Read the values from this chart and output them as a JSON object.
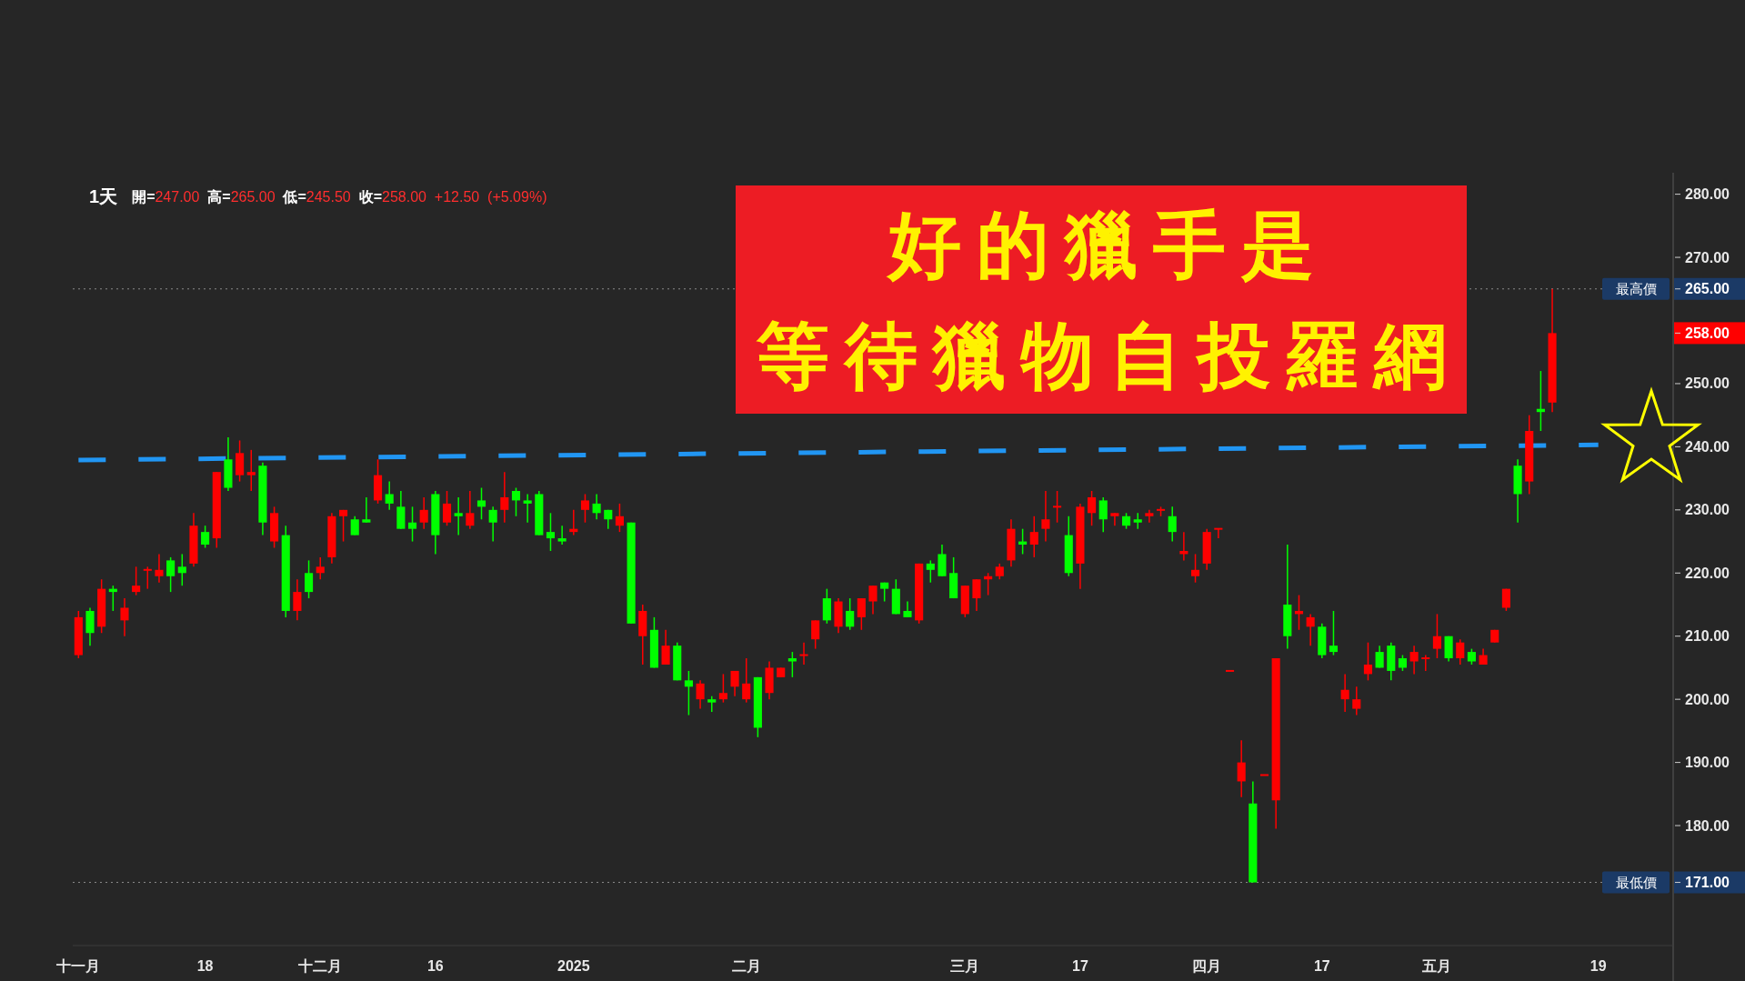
{
  "chart_data": {
    "type": "candlestick",
    "title": "1天",
    "subtitle": "開=247.00 高=265.00 低=245.50 收=258.00 +12.50 (+5.09%)",
    "categories": [
      "十一月",
      null,
      null,
      null,
      null,
      null,
      null,
      null,
      null,
      null,
      null,
      "18",
      null,
      null,
      null,
      null,
      null,
      null,
      null,
      null,
      null,
      "十二月",
      null,
      null,
      null,
      null,
      null,
      null,
      null,
      null,
      null,
      "16",
      null,
      null,
      null,
      null,
      null,
      null,
      null,
      null,
      null,
      null,
      null,
      "2025",
      null,
      null,
      null,
      null,
      null,
      null,
      null,
      null,
      null,
      null,
      null,
      null,
      null,
      null,
      "二月",
      null,
      null,
      null,
      null,
      null,
      null,
      null,
      null,
      null,
      null,
      null,
      null,
      null,
      null,
      null,
      null,
      null,
      null,
      "三月",
      null,
      null,
      null,
      null,
      null,
      null,
      null,
      null,
      null,
      "17",
      null,
      null,
      null,
      null,
      null,
      null,
      null,
      null,
      null,
      null,
      "四月",
      null,
      null,
      null,
      null,
      null,
      null,
      null,
      null,
      null,
      "17",
      null,
      null,
      null,
      null,
      null,
      null,
      null,
      null,
      null,
      "五月",
      null,
      null,
      null,
      null,
      null,
      null,
      null,
      null,
      null,
      null,
      null,
      null,
      null,
      "19",
      null,
      null,
      null,
      null,
      null,
      null
    ],
    "ohlc": [
      [
        207,
        214,
        206.5,
        213
      ],
      [
        214,
        214.5,
        208.5,
        210.5
      ],
      [
        211.5,
        219,
        210.5,
        217.5
      ],
      [
        217.5,
        218,
        214,
        217
      ],
      [
        212.5,
        216,
        210,
        214.5
      ],
      [
        217,
        221,
        216.5,
        218
      ],
      [
        220.5,
        221,
        217.5,
        220.5
      ],
      [
        219.5,
        223,
        218.5,
        220.5
      ],
      [
        222,
        222.5,
        217,
        219.5
      ],
      [
        221,
        223,
        218,
        220
      ],
      [
        221.5,
        229.5,
        221,
        227.5
      ],
      [
        226.5,
        227.5,
        224,
        224.5
      ],
      [
        225.5,
        236,
        224,
        236
      ],
      [
        238,
        241.5,
        233,
        233.5
      ],
      [
        235.5,
        241,
        234.5,
        239
      ],
      [
        235.5,
        239.5,
        233,
        236
      ],
      [
        237,
        237.5,
        226,
        228
      ],
      [
        225,
        230.5,
        224,
        229.5
      ],
      [
        226,
        227.5,
        213,
        214
      ],
      [
        214,
        219,
        212.5,
        217
      ],
      [
        220,
        222,
        216,
        217
      ],
      [
        220,
        222.5,
        219,
        221
      ],
      [
        222.5,
        229.5,
        221.5,
        229
      ],
      [
        229,
        230,
        225,
        230
      ],
      [
        228.5,
        229,
        226,
        226
      ],
      [
        228.5,
        232,
        228,
        228
      ],
      [
        231.5,
        238,
        231,
        235.5
      ],
      [
        232.5,
        234.5,
        230,
        231
      ],
      [
        230.5,
        233,
        227,
        227
      ],
      [
        228,
        230.5,
        225,
        227
      ],
      [
        228,
        232,
        227,
        230
      ],
      [
        232.5,
        233,
        223,
        226
      ],
      [
        228,
        233,
        227.5,
        231
      ],
      [
        229.5,
        232,
        226,
        229
      ],
      [
        227.5,
        233,
        227,
        229.5
      ],
      [
        231.5,
        233.5,
        228.5,
        230.5
      ],
      [
        230,
        230.5,
        225,
        228
      ],
      [
        230,
        236,
        228,
        232
      ],
      [
        233,
        233.5,
        229,
        231.5
      ],
      [
        231.5,
        232.5,
        228,
        231
      ],
      [
        232.5,
        233,
        226,
        226
      ],
      [
        226.5,
        229.5,
        223.5,
        225.5
      ],
      [
        225.5,
        227.5,
        224.5,
        225
      ],
      [
        226.5,
        230,
        226,
        227
      ],
      [
        230,
        232.5,
        228,
        231.5
      ],
      [
        231,
        232.5,
        228.5,
        229.5
      ],
      [
        230,
        230,
        227,
        228.5
      ],
      [
        227.5,
        231,
        226.5,
        229
      ],
      [
        228,
        228,
        212,
        212
      ],
      [
        210,
        215,
        205.5,
        214
      ],
      [
        211,
        213,
        205,
        205
      ],
      [
        205.5,
        211,
        205.5,
        208.5
      ],
      [
        208.5,
        209,
        203,
        203
      ],
      [
        203,
        204.5,
        197.5,
        202
      ],
      [
        200,
        203,
        198.5,
        202.5
      ],
      [
        200,
        200.5,
        198,
        199.5
      ],
      [
        200,
        204,
        199.5,
        201
      ],
      [
        202,
        204.5,
        200.5,
        204.5
      ],
      [
        200,
        206.5,
        199.5,
        202.5
      ],
      [
        203.5,
        203.5,
        194,
        195.5
      ],
      [
        201,
        206,
        200,
        205
      ],
      [
        203.5,
        205,
        203.5,
        205
      ],
      [
        206.5,
        207.5,
        203.5,
        206
      ],
      [
        207,
        209,
        205.5,
        207
      ],
      [
        209.5,
        212.5,
        208,
        212.5
      ],
      [
        216,
        217.5,
        212,
        212.5
      ],
      [
        211.5,
        216,
        210.5,
        215.5
      ],
      [
        214,
        216,
        211,
        211.5
      ],
      [
        213,
        216,
        211,
        216
      ],
      [
        215.5,
        218,
        213.5,
        218
      ],
      [
        218.5,
        218.5,
        215.5,
        217.5
      ],
      [
        217.5,
        219,
        213.5,
        213.5
      ],
      [
        214,
        215.5,
        213,
        213
      ],
      [
        212.5,
        221.5,
        212,
        221.5
      ],
      [
        221.5,
        222,
        218.5,
        220.5
      ],
      [
        223,
        224.5,
        219.5,
        219.5
      ],
      [
        220,
        222.5,
        216,
        216
      ],
      [
        213.5,
        218,
        213,
        218
      ],
      [
        216,
        219,
        214,
        219
      ],
      [
        219,
        220,
        216.5,
        219.5
      ],
      [
        219.5,
        221.5,
        219,
        221
      ],
      [
        222,
        228.5,
        221,
        227
      ],
      [
        225,
        227,
        223,
        224.5
      ],
      [
        224.5,
        229,
        222.5,
        226.5
      ],
      [
        227,
        233,
        225,
        228.5
      ],
      [
        230.5,
        233,
        228,
        230.5
      ],
      [
        226,
        229,
        219.5,
        220
      ],
      [
        221.5,
        231,
        217.5,
        230.5
      ],
      [
        229.5,
        233,
        227.5,
        232
      ],
      [
        231.5,
        232,
        226.5,
        228.5
      ],
      [
        229,
        229.5,
        227.5,
        229.5
      ],
      [
        229,
        229.5,
        227,
        227.5
      ],
      [
        228.5,
        229.5,
        227,
        228
      ],
      [
        229,
        230,
        228,
        229.5
      ],
      [
        230,
        230.5,
        229,
        230
      ],
      [
        229,
        230.5,
        225,
        226.5
      ],
      [
        223,
        226.5,
        222,
        223.5
      ],
      [
        219.5,
        223,
        218.5,
        220.5
      ],
      [
        221.5,
        227,
        220.5,
        226.5
      ],
      [
        227,
        227,
        225.5,
        227
      ],
      [
        204.5,
        204.5,
        204.5,
        204.5
      ],
      [
        187,
        193.5,
        184.5,
        190
      ],
      [
        183.5,
        187,
        171,
        171
      ],
      [
        188,
        188,
        188,
        188
      ],
      [
        184,
        206.5,
        179.5,
        206.5
      ],
      [
        215,
        224.5,
        208,
        210
      ],
      [
        213.5,
        216.5,
        211,
        214
      ],
      [
        211.5,
        213.5,
        208.5,
        213
      ],
      [
        211.5,
        212,
        206.5,
        207
      ],
      [
        208.5,
        214,
        207,
        207.5
      ],
      [
        200,
        204,
        198,
        201.5
      ],
      [
        198.5,
        202,
        197.5,
        200
      ],
      [
        204,
        209,
        203,
        205.5
      ],
      [
        207.5,
        208.5,
        205,
        205
      ],
      [
        208.5,
        209,
        203,
        204.5
      ],
      [
        206.5,
        207,
        204.5,
        205
      ],
      [
        206,
        208.5,
        204,
        207.5
      ],
      [
        206.5,
        207,
        204.5,
        206.5
      ],
      [
        208,
        213.5,
        206.5,
        210
      ],
      [
        210,
        210,
        206,
        206.5
      ],
      [
        206.5,
        209.5,
        205.5,
        209
      ],
      [
        207.5,
        208,
        205.5,
        206
      ],
      [
        205.5,
        208,
        205.5,
        207
      ],
      [
        209,
        211,
        209,
        211
      ],
      [
        214.5,
        217.5,
        214,
        217.5
      ],
      [
        237,
        238,
        228,
        232.5
      ],
      [
        234.5,
        245,
        232.5,
        242.5
      ],
      [
        246,
        252,
        242.5,
        245.5
      ],
      [
        247,
        265,
        245.5,
        258
      ],
      null,
      null,
      null,
      null,
      null,
      null,
      null,
      null,
      null,
      null
    ],
    "colors": [
      "#ff0000",
      "#00ff00",
      "#ff0000",
      "#00ff00",
      "#ff0000",
      "#ff0000",
      "#ff0000",
      "#ff0000",
      "#00ff00",
      "#00ff00",
      "#ff0000",
      "#00ff00",
      "#ff0000",
      "#00ff00",
      "#ff0000",
      "#ff0000",
      "#00ff00",
      "#ff0000",
      "#00ff00",
      "#ff0000",
      "#00ff00",
      "#ff0000",
      "#ff0000",
      "#ff0000",
      "#00ff00",
      "#00ff00",
      "#ff0000",
      "#00ff00",
      "#00ff00",
      "#00ff00",
      "#ff0000",
      "#00ff00",
      "#ff0000",
      "#00ff00",
      "#ff0000",
      "#00ff00",
      "#00ff00",
      "#ff0000",
      "#00ff00",
      "#00ff00",
      "#00ff00",
      "#00ff00",
      "#00ff00",
      "#ff0000",
      "#ff0000",
      "#00ff00",
      "#00ff00",
      "#ff0000",
      "#00ff00",
      "#ff0000",
      "#00ff00",
      "#ff0000",
      "#00ff00",
      "#00ff00",
      "#ff0000",
      "#00ff00",
      "#ff0000",
      "#ff0000",
      "#ff0000",
      "#00ff00",
      "#ff0000",
      "#ff0000",
      "#00ff00",
      "#ff0000",
      "#ff0000",
      "#00ff00",
      "#ff0000",
      "#00ff00",
      "#ff0000",
      "#ff0000",
      "#00ff00",
      "#00ff00",
      "#00ff00",
      "#ff0000",
      "#00ff00",
      "#00ff00",
      "#00ff00",
      "#ff0000",
      "#ff0000",
      "#ff0000",
      "#ff0000",
      "#ff0000",
      "#00ff00",
      "#ff0000",
      "#ff0000",
      "#ff0000",
      "#00ff00",
      "#ff0000",
      "#ff0000",
      "#00ff00",
      "#ff0000",
      "#00ff00",
      "#00ff00",
      "#ff0000",
      "#ff0000",
      "#00ff00",
      "#ff0000",
      "#ff0000",
      "#ff0000",
      "#ff0000",
      "#ff0000",
      "#ff0000",
      "#00ff00",
      "#ff0000",
      "#ff0000",
      "#00ff00",
      "#ff0000",
      "#ff0000",
      "#00ff00",
      "#00ff00",
      "#ff0000",
      "#ff0000",
      "#ff0000",
      "#00ff00",
      "#00ff00",
      "#00ff00",
      "#ff0000",
      "#ff0000",
      "#ff0000",
      "#00ff00",
      "#ff0000",
      "#00ff00",
      "#ff0000",
      "#ff0000",
      "#ff0000",
      "#00ff00",
      "#ff0000",
      "#00ff00",
      "#ff0000",
      null,
      null,
      null,
      null,
      null,
      null,
      null,
      null,
      null,
      null
    ],
    "ylim": [
      161,
      283.4
    ],
    "yticks": [
      {
        "value": 171,
        "label": "171.00"
      },
      {
        "value": 180,
        "label": "180.00"
      },
      {
        "value": 190,
        "label": "190.00"
      },
      {
        "value": 200,
        "label": "200.00"
      },
      {
        "value": 210,
        "label": "210.00"
      },
      {
        "value": 220,
        "label": "220.00"
      },
      {
        "value": 230,
        "label": "230.00"
      },
      {
        "value": 240,
        "label": "240.00"
      },
      {
        "value": 250,
        "label": "250.00"
      },
      {
        "value": 258,
        "label": "258.00"
      },
      {
        "value": 265,
        "label": "265.00"
      },
      {
        "value": 270,
        "label": "270.00"
      },
      {
        "value": 280,
        "label": "280.00"
      }
    ],
    "series": [
      {
        "type": "line",
        "x": [
          "十一月",
          "19"
        ],
        "values": [
          237.9,
          240.3
        ],
        "color": "#2196f3",
        "line_style": "dashed"
      }
    ],
    "ref_lines": [
      {
        "axis": "y",
        "value": 265,
        "label": "最高價",
        "line_style": "dotted"
      },
      {
        "axis": "y",
        "value": 171,
        "label": "最低價",
        "line_style": "dotted"
      }
    ],
    "annotations": [
      "好的獵手是",
      "等待獵物自投羅網"
    ]
  }
}
